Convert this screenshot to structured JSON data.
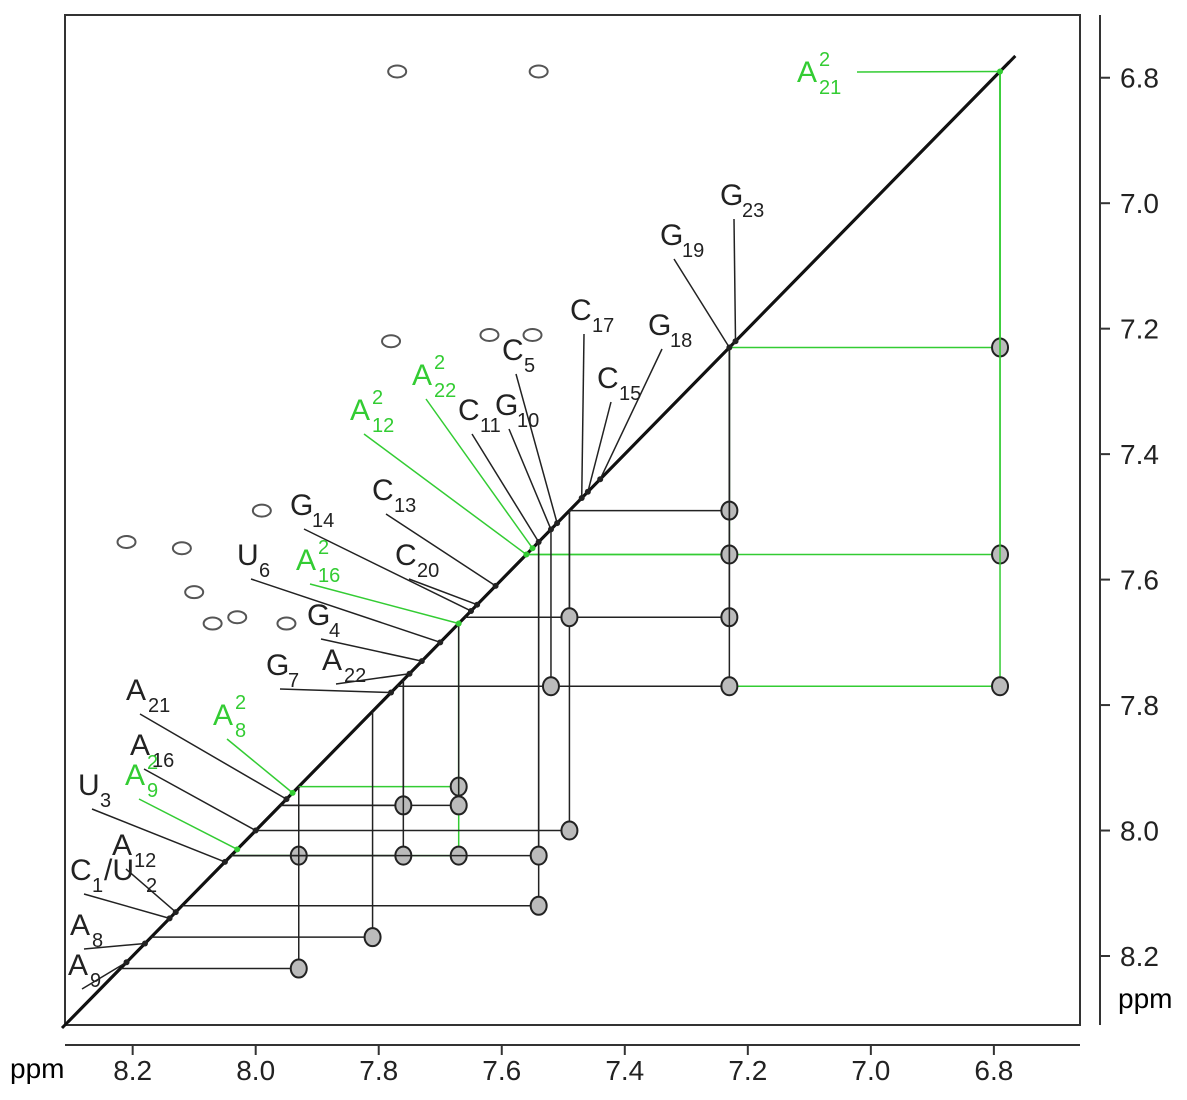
{
  "chart_data": {
    "type": "nmr-2d",
    "x_label": "ppm",
    "y_label": "ppm",
    "xlim": [
      8.31,
      6.66
    ],
    "ylim": [
      6.7,
      8.31
    ],
    "xticks": [
      8.2,
      {
        "value": 8.0,
        "label": "8.0"
      },
      7.8,
      7.6,
      7.4,
      7.2,
      {
        "value": 7.0,
        "label": "7.0"
      },
      6.8
    ],
    "yticks": [
      6.8,
      {
        "value": 7.0,
        "label": "7.0"
      },
      7.2,
      7.4,
      7.6,
      7.8,
      {
        "value": 8.0,
        "label": "8.0"
      },
      8.2
    ],
    "colors": {
      "black": "#222222",
      "green": "#33cc33"
    },
    "assignments": [
      {
        "base": "A",
        "sup": "2",
        "sub": "21",
        "color": "green",
        "ppm": 6.79
      },
      {
        "base": "G",
        "sub": "23",
        "color": "black",
        "ppm": 7.22
      },
      {
        "base": "G",
        "sub": "19",
        "color": "black",
        "ppm": 7.23
      },
      {
        "base": "G",
        "sub": "18",
        "color": "black",
        "ppm": 7.44
      },
      {
        "base": "C",
        "sub": "17",
        "color": "black",
        "ppm": 7.47
      },
      {
        "base": "C",
        "sub": "15",
        "color": "black",
        "ppm": 7.46
      },
      {
        "base": "C",
        "sub": "5",
        "color": "black",
        "ppm": 7.51
      },
      {
        "base": "G",
        "sub": "10",
        "color": "black",
        "ppm": 7.52
      },
      {
        "base": "C",
        "sub": "11",
        "color": "black",
        "ppm": 7.54
      },
      {
        "base": "A",
        "sup": "2",
        "sub": "22",
        "color": "green",
        "ppm": 7.55
      },
      {
        "base": "A",
        "sup": "2",
        "sub": "12",
        "color": "green",
        "ppm": 7.56
      },
      {
        "base": "C",
        "sub": "13",
        "color": "black",
        "ppm": 7.61
      },
      {
        "base": "G",
        "sub": "14",
        "color": "black",
        "ppm": 7.65
      },
      {
        "base": "C",
        "sub": "20",
        "color": "black",
        "ppm": 7.64
      },
      {
        "base": "U",
        "sub": "6",
        "color": "black",
        "ppm": 7.7
      },
      {
        "base": "A",
        "sup": "2",
        "sub": "16",
        "color": "green",
        "ppm": 7.67
      },
      {
        "base": "G",
        "sub": "4",
        "color": "black",
        "ppm": 7.73
      },
      {
        "base": "A",
        "sub": "22",
        "color": "black",
        "ppm": 7.75
      },
      {
        "base": "G",
        "sub": "7",
        "color": "black",
        "ppm": 7.78
      },
      {
        "base": "A",
        "sub": "21",
        "color": "black",
        "ppm": 7.95
      },
      {
        "base": "A",
        "sup": "2",
        "sub": "8",
        "color": "green",
        "ppm": 7.94
      },
      {
        "base": "A",
        "sub": "16",
        "color": "black",
        "ppm": 8.0
      },
      {
        "base": "A",
        "sup": "2",
        "sub": "9",
        "color": "green",
        "ppm": 8.03
      },
      {
        "base": "U",
        "sub": "3",
        "color": "black",
        "ppm": 8.05
      },
      {
        "base": "A",
        "sub": "12",
        "color": "black",
        "ppm": 8.13
      },
      {
        "base": "C",
        "sub": "1",
        "tail": "/U",
        "tail_sub": "2",
        "color": "black",
        "ppm": 8.14
      },
      {
        "base": "A",
        "sub": "8",
        "color": "black",
        "ppm": 8.18
      },
      {
        "base": "A",
        "sub": "9",
        "color": "black",
        "ppm": 8.21
      }
    ],
    "cross_peaks": [
      {
        "x": 6.79,
        "y": 7.23,
        "color": "green"
      },
      {
        "x": 6.79,
        "y": 7.56,
        "color": "green"
      },
      {
        "x": 6.79,
        "y": 7.77,
        "color": "green"
      },
      {
        "x": 7.23,
        "y": 7.56,
        "color": "green"
      },
      {
        "x": 7.67,
        "y": 7.93,
        "color": "green"
      },
      {
        "x": 7.67,
        "y": 8.04,
        "color": "green"
      },
      {
        "x": 7.93,
        "y": 8.04,
        "color": "green"
      },
      {
        "x": 7.23,
        "y": 7.49,
        "color": "black"
      },
      {
        "x": 7.23,
        "y": 7.66,
        "color": "black"
      },
      {
        "x": 7.23,
        "y": 7.77,
        "color": "black"
      },
      {
        "x": 7.49,
        "y": 8.0,
        "color": "black"
      },
      {
        "x": 7.49,
        "y": 7.66,
        "color": "black"
      },
      {
        "x": 7.67,
        "y": 7.96,
        "color": "black"
      },
      {
        "x": 7.76,
        "y": 7.96,
        "color": "black"
      },
      {
        "x": 7.76,
        "y": 8.04,
        "color": "black"
      },
      {
        "x": 7.81,
        "y": 8.17,
        "color": "black"
      },
      {
        "x": 7.54,
        "y": 8.12,
        "color": "black"
      },
      {
        "x": 7.54,
        "y": 8.04,
        "color": "black"
      },
      {
        "x": 7.93,
        "y": 8.22,
        "color": "black"
      },
      {
        "x": 7.52,
        "y": 7.77,
        "color": "black"
      }
    ],
    "other_peaks": [
      {
        "x": 7.77,
        "y": 6.79
      },
      {
        "x": 7.54,
        "y": 6.79
      },
      {
        "x": 7.78,
        "y": 7.22
      },
      {
        "x": 7.62,
        "y": 7.21
      },
      {
        "x": 7.55,
        "y": 7.21
      },
      {
        "x": 7.99,
        "y": 7.49
      },
      {
        "x": 8.21,
        "y": 7.54
      },
      {
        "x": 8.12,
        "y": 7.55
      },
      {
        "x": 8.03,
        "y": 7.66
      },
      {
        "x": 8.07,
        "y": 7.67
      },
      {
        "x": 7.95,
        "y": 7.67
      },
      {
        "x": 8.1,
        "y": 7.62
      }
    ]
  }
}
